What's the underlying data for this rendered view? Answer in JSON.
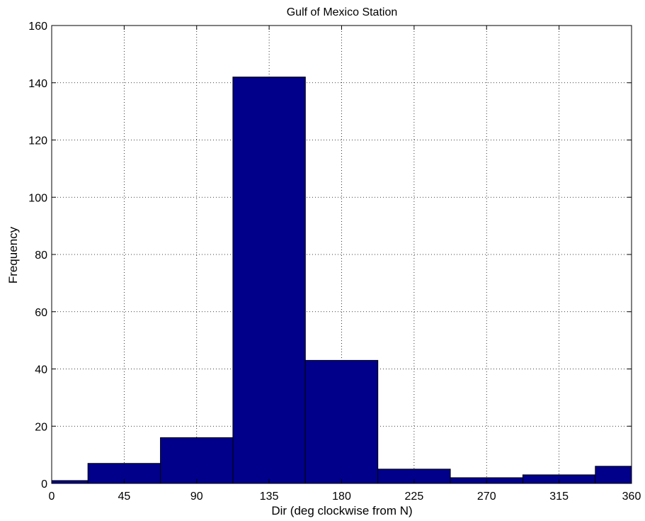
{
  "chart_data": {
    "type": "bar",
    "title": "Gulf of Mexico Station",
    "xlabel": "Dir (deg clockwise from N)",
    "ylabel": "Frequency",
    "xlim": [
      0,
      360
    ],
    "ylim": [
      0,
      160
    ],
    "xticks": [
      0,
      45,
      90,
      135,
      180,
      225,
      270,
      315,
      360
    ],
    "yticks": [
      0,
      20,
      40,
      60,
      80,
      100,
      120,
      140,
      160
    ],
    "grid": true,
    "bar_color": "#00008B",
    "bin_edges": [
      0,
      22.5,
      67.5,
      112.5,
      157.5,
      202.5,
      247.5,
      292.5,
      337.5,
      360
    ],
    "values": [
      1,
      7,
      16,
      142,
      43,
      5,
      2,
      3,
      6
    ]
  }
}
